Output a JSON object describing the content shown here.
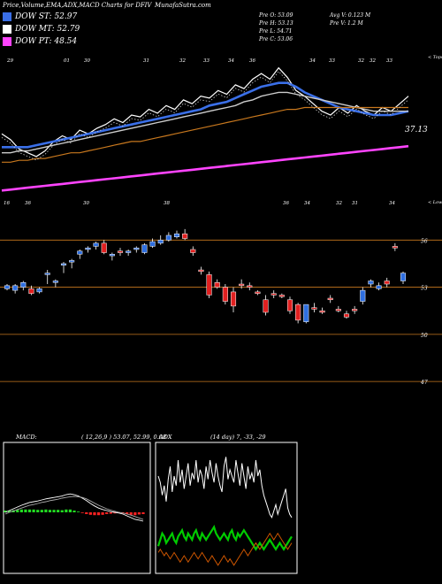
{
  "header": {
    "title": "Price,Volume,EMA,ADX,MACD Charts for DFIV",
    "site": "MunafaSutra.com"
  },
  "legend": [
    {
      "label": "DOW ST: 52.97",
      "color": "#3a6fe8"
    },
    {
      "label": "DOW MT: 52.79",
      "color": "#ffffff"
    },
    {
      "label": "DOW PT: 48.54",
      "color": "#ff44ff"
    }
  ],
  "info": {
    "left": [
      "Pre O: 53.09",
      "Pre H: 53.13",
      "Pre L: 54.71",
      "Pre C: 53.06"
    ],
    "right": [
      "Avg V: 0.123 M",
      "Pre V: 1.2 M"
    ]
  },
  "chart_data": [
    {
      "type": "line",
      "name": "price-ema-chart",
      "top_date_labels": [
        "29",
        "01",
        "30",
        "31",
        "32",
        "33",
        "34",
        "36",
        "34",
        "33",
        "32",
        "32",
        "33"
      ],
      "top_right_label": "< Tops",
      "bottom_date_labels": [
        "16",
        "36",
        "30",
        "38",
        "36",
        "34",
        "32",
        "31",
        "34"
      ],
      "bottom_right_label": "< Lows",
      "last_price_label": "37.13",
      "series": [
        {
          "color": "#ffffff",
          "values": [
            36.0,
            35.7,
            35.2,
            35.0,
            34.8,
            35.1,
            35.6,
            35.9,
            35.7,
            36.2,
            36.0,
            36.3,
            36.5,
            36.8,
            36.6,
            37.0,
            36.9,
            37.3,
            37.1,
            37.5,
            37.3,
            37.8,
            37.6,
            38.0,
            37.9,
            38.3,
            38.1,
            38.6,
            38.4,
            38.9,
            39.2,
            38.9,
            39.5,
            39.0,
            38.3,
            38.0,
            37.6,
            37.2,
            37.0,
            37.4,
            37.1,
            37.5,
            37.2,
            37.0,
            37.4,
            37.2,
            37.6,
            38.0
          ]
        },
        {
          "color": "#3a6fe8",
          "values": [
            35.3,
            35.3,
            35.3,
            35.3,
            35.4,
            35.5,
            35.6,
            35.7,
            35.8,
            35.9,
            36.0,
            36.1,
            36.2,
            36.3,
            36.4,
            36.5,
            36.6,
            36.7,
            36.8,
            36.9,
            37.0,
            37.1,
            37.2,
            37.3,
            37.5,
            37.6,
            37.7,
            37.9,
            38.1,
            38.3,
            38.5,
            38.6,
            38.7,
            38.7,
            38.5,
            38.2,
            38.0,
            37.8,
            37.6,
            37.4,
            37.3,
            37.2,
            37.1,
            37.0,
            37.0,
            37.0,
            37.1,
            37.2
          ]
        },
        {
          "color": "#cccccc",
          "values": [
            35.0,
            35.0,
            35.1,
            35.1,
            35.2,
            35.3,
            35.4,
            35.5,
            35.6,
            35.7,
            35.8,
            35.9,
            36.0,
            36.1,
            36.2,
            36.3,
            36.4,
            36.5,
            36.6,
            36.7,
            36.8,
            36.9,
            37.0,
            37.1,
            37.2,
            37.3,
            37.4,
            37.5,
            37.7,
            37.8,
            38.0,
            38.1,
            38.2,
            38.2,
            38.1,
            38.0,
            37.9,
            37.8,
            37.7,
            37.6,
            37.5,
            37.4,
            37.3,
            37.2,
            37.2,
            37.2,
            37.2,
            37.2
          ]
        },
        {
          "color": "#c8781e",
          "values": [
            34.5,
            34.5,
            34.6,
            34.6,
            34.7,
            34.7,
            34.8,
            34.9,
            35.0,
            35.0,
            35.1,
            35.2,
            35.3,
            35.4,
            35.5,
            35.6,
            35.6,
            35.7,
            35.8,
            35.9,
            36.0,
            36.1,
            36.2,
            36.3,
            36.4,
            36.5,
            36.6,
            36.7,
            36.8,
            36.9,
            37.0,
            37.1,
            37.2,
            37.3,
            37.3,
            37.4,
            37.4,
            37.4,
            37.4,
            37.4,
            37.4,
            37.4,
            37.4,
            37.4,
            37.4,
            37.4,
            37.4,
            37.4
          ]
        },
        {
          "color": "#ff44ff",
          "values": [
            33.0,
            33.05,
            33.1,
            33.15,
            33.2,
            33.25,
            33.3,
            33.35,
            33.4,
            33.45,
            33.5,
            33.55,
            33.6,
            33.65,
            33.7,
            33.75,
            33.8,
            33.85,
            33.9,
            33.95,
            34.0,
            34.05,
            34.1,
            34.15,
            34.2,
            34.25,
            34.3,
            34.35,
            34.4,
            34.45,
            34.5,
            34.55,
            34.6,
            34.65,
            34.7,
            34.75,
            34.8,
            34.85,
            34.9,
            34.95,
            35.0,
            35.05,
            35.1,
            35.15,
            35.2,
            35.25,
            35.3,
            35.35
          ]
        }
      ]
    },
    {
      "type": "candlestick",
      "name": "price-candles",
      "y_tick_labels": [
        "56",
        "53",
        "50",
        "47"
      ],
      "y_ticks": [
        56,
        53,
        50,
        47
      ],
      "ylim": [
        46.5,
        57.2
      ],
      "candles": [
        [
          52.9,
          53.2,
          53.1,
          52.8
        ],
        [
          52.8,
          53.2,
          53.1,
          52.6
        ],
        [
          53.0,
          53.4,
          53.3,
          52.8
        ],
        [
          52.9,
          53.1,
          52.6,
          52.5
        ],
        [
          52.7,
          53.0,
          52.9,
          52.6
        ],
        [
          53.8,
          54.1,
          53.9,
          53.2
        ],
        [
          53.3,
          53.5,
          53.4,
          53.0
        ],
        [
          54.4,
          54.6,
          54.5,
          53.9
        ],
        [
          54.6,
          54.8,
          54.7,
          54.2
        ],
        [
          55.1,
          55.4,
          55.3,
          54.8
        ],
        [
          55.4,
          55.6,
          55.5,
          55.2
        ],
        [
          55.6,
          55.9,
          55.8,
          55.4
        ],
        [
          55.8,
          56.0,
          55.2,
          55.1
        ],
        [
          55.0,
          55.2,
          55.1,
          54.7
        ],
        [
          55.3,
          55.5,
          55.2,
          55.0
        ],
        [
          55.2,
          55.4,
          55.3,
          55.0
        ],
        [
          55.4,
          55.6,
          55.5,
          55.2
        ],
        [
          55.2,
          55.8,
          55.7,
          55.1
        ],
        [
          55.6,
          56.1,
          55.9,
          55.5
        ],
        [
          55.8,
          56.3,
          56.0,
          55.7
        ],
        [
          56.0,
          56.5,
          56.3,
          55.9
        ],
        [
          56.2,
          56.6,
          56.4,
          56.1
        ],
        [
          56.4,
          56.7,
          56.1,
          56.0
        ],
        [
          55.4,
          55.6,
          55.2,
          55.0
        ],
        [
          54.1,
          54.3,
          54.0,
          53.8
        ],
        [
          53.8,
          54.0,
          52.5,
          52.3
        ],
        [
          53.3,
          53.5,
          53.0,
          52.9
        ],
        [
          53.0,
          53.2,
          52.1,
          51.9
        ],
        [
          52.7,
          53.0,
          51.8,
          51.4
        ],
        [
          53.2,
          53.5,
          53.1,
          52.9
        ],
        [
          53.1,
          53.3,
          53.0,
          52.8
        ],
        [
          52.7,
          52.8,
          52.6,
          52.5
        ],
        [
          52.2,
          52.5,
          51.4,
          51.2
        ],
        [
          52.6,
          52.8,
          52.5,
          52.3
        ],
        [
          52.5,
          52.6,
          52.4,
          52.3
        ],
        [
          52.2,
          52.4,
          51.5,
          51.3
        ],
        [
          51.9,
          52.0,
          50.9,
          50.7
        ],
        [
          50.8,
          51.1,
          51.9,
          50.7
        ],
        [
          51.7,
          52.0,
          51.6,
          51.4
        ],
        [
          51.5,
          51.7,
          51.4,
          51.3
        ],
        [
          52.3,
          52.5,
          52.2,
          52.0
        ],
        [
          51.6,
          51.8,
          51.5,
          51.4
        ],
        [
          51.3,
          51.5,
          51.1,
          51.0
        ],
        [
          51.6,
          51.8,
          51.5,
          51.3
        ],
        [
          52.1,
          53.0,
          52.8,
          51.9
        ],
        [
          53.2,
          53.5,
          53.4,
          53.0
        ],
        [
          52.9,
          53.3,
          53.1,
          52.8
        ],
        [
          53.4,
          53.6,
          53.2,
          53.0
        ],
        [
          55.6,
          55.8,
          55.5,
          55.3
        ],
        [
          53.4,
          54.0,
          53.9,
          53.2
        ]
      ]
    },
    {
      "type": "line",
      "name": "macd-chart",
      "title": "MACD:",
      "params": "( 12,26,9 ) 53.07, 52.99, 0.08",
      "series": [
        {
          "color": "#ffffff",
          "values": [
            0.0,
            0.05,
            0.1,
            0.15,
            0.2,
            0.24,
            0.28,
            0.3,
            0.32,
            0.35,
            0.38,
            0.4,
            0.42,
            0.44,
            0.46,
            0.5,
            0.52,
            0.5,
            0.46,
            0.4,
            0.33,
            0.25,
            0.18,
            0.12,
            0.08,
            0.05,
            0.02,
            0.0,
            -0.02,
            -0.05,
            -0.1,
            -0.15,
            -0.2,
            -0.22,
            -0.25
          ]
        },
        {
          "color": "#aaaaaa",
          "values": [
            -0.05,
            0.0,
            0.04,
            0.08,
            0.12,
            0.16,
            0.2,
            0.22,
            0.25,
            0.28,
            0.3,
            0.33,
            0.35,
            0.37,
            0.4,
            0.42,
            0.44,
            0.45,
            0.44,
            0.42,
            0.38,
            0.32,
            0.26,
            0.2,
            0.15,
            0.1,
            0.06,
            0.03,
            0.0,
            -0.02,
            -0.05,
            -0.08,
            -0.12,
            -0.16,
            -0.2
          ]
        }
      ],
      "histogram": [
        0.05,
        0.05,
        0.06,
        0.07,
        0.08,
        0.08,
        0.08,
        0.08,
        0.07,
        0.07,
        0.08,
        0.07,
        0.07,
        0.07,
        0.06,
        0.08,
        0.08,
        0.05,
        0.02,
        -0.02,
        -0.05,
        -0.07,
        -0.08,
        -0.08,
        -0.07,
        -0.05,
        -0.04,
        -0.03,
        -0.02,
        -0.03,
        -0.05,
        -0.07,
        -0.08,
        -0.06,
        -0.05
      ]
    },
    {
      "type": "line",
      "name": "adx-chart",
      "title": "ADX",
      "params": "(14 day) 7, -33, -29",
      "series": [
        {
          "color": "#ffffff",
          "values": [
            30,
            28,
            24,
            27,
            22,
            29,
            33,
            25,
            30,
            27,
            35,
            28,
            32,
            26,
            30,
            34,
            27,
            31,
            29,
            35,
            28,
            32,
            30,
            26,
            33,
            29,
            35,
            31,
            28,
            34,
            30,
            27,
            25,
            33,
            36,
            29,
            32,
            30,
            28,
            35,
            31,
            27,
            34,
            30,
            26,
            33,
            29,
            31,
            28,
            35,
            30,
            32,
            27,
            24,
            22,
            20,
            18,
            17,
            19,
            21,
            18,
            20,
            22,
            24,
            26,
            20,
            18,
            17
          ]
        },
        {
          "color": "#00cc00",
          "values": [
            8,
            10,
            12,
            11,
            9,
            10,
            11,
            12,
            10,
            9,
            11,
            12,
            13,
            11,
            10,
            12,
            11,
            10,
            12,
            13,
            11,
            10,
            12,
            11,
            10,
            11,
            12,
            13,
            14,
            12,
            11,
            10,
            11,
            12,
            11,
            10,
            12,
            13,
            11,
            10,
            12,
            11,
            12,
            13,
            12,
            11,
            10,
            9,
            8,
            7,
            8,
            9,
            8,
            7,
            8,
            9,
            10,
            9,
            8,
            7,
            8,
            9,
            8,
            7,
            8,
            9,
            10,
            11
          ]
        },
        {
          "color": "#cc5500",
          "values": [
            6,
            7,
            6,
            5,
            6,
            5,
            4,
            5,
            6,
            5,
            4,
            3,
            4,
            5,
            4,
            3,
            4,
            5,
            6,
            5,
            4,
            5,
            6,
            5,
            4,
            3,
            4,
            5,
            4,
            3,
            2,
            3,
            4,
            5,
            4,
            3,
            4,
            3,
            2,
            3,
            4,
            5,
            6,
            7,
            6,
            5,
            6,
            7,
            8,
            9,
            8,
            7,
            8,
            9,
            10,
            11,
            12,
            11,
            10,
            11,
            12,
            11,
            10,
            9,
            8,
            7,
            8,
            9
          ]
        }
      ]
    }
  ]
}
